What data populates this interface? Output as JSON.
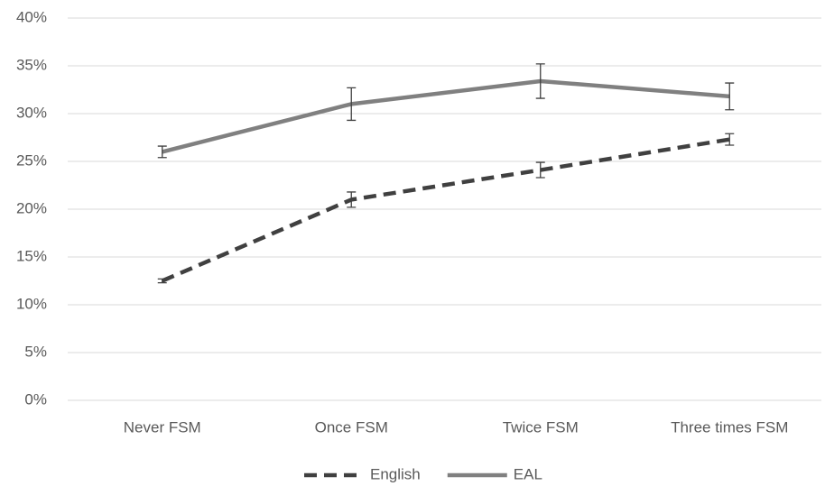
{
  "chart_data": {
    "type": "line",
    "categories": [
      "Never FSM",
      "Once FSM",
      "Twice FSM",
      "Three times FSM"
    ],
    "series": [
      {
        "name": "English",
        "color": "#404040",
        "dash": true,
        "values": [
          12.5,
          21.0,
          24.1,
          27.3
        ],
        "errors": [
          0.2,
          0.8,
          0.8,
          0.6
        ]
      },
      {
        "name": "EAL",
        "color": "#808080",
        "dash": false,
        "values": [
          26.0,
          31.0,
          33.4,
          31.8
        ],
        "errors": [
          0.6,
          1.7,
          1.8,
          1.4
        ]
      }
    ],
    "ylim": [
      0,
      40
    ],
    "yticks": [
      {
        "value": 0,
        "label": "0%"
      },
      {
        "value": 5,
        "label": "5%"
      },
      {
        "value": 10,
        "label": "10%"
      },
      {
        "value": 15,
        "label": "15%"
      },
      {
        "value": 20,
        "label": "20%"
      },
      {
        "value": 25,
        "label": "25%"
      },
      {
        "value": 30,
        "label": "30%"
      },
      {
        "value": 35,
        "label": "35%"
      },
      {
        "value": 40,
        "label": "40%"
      }
    ],
    "grid": true,
    "legend": "bottom"
  }
}
